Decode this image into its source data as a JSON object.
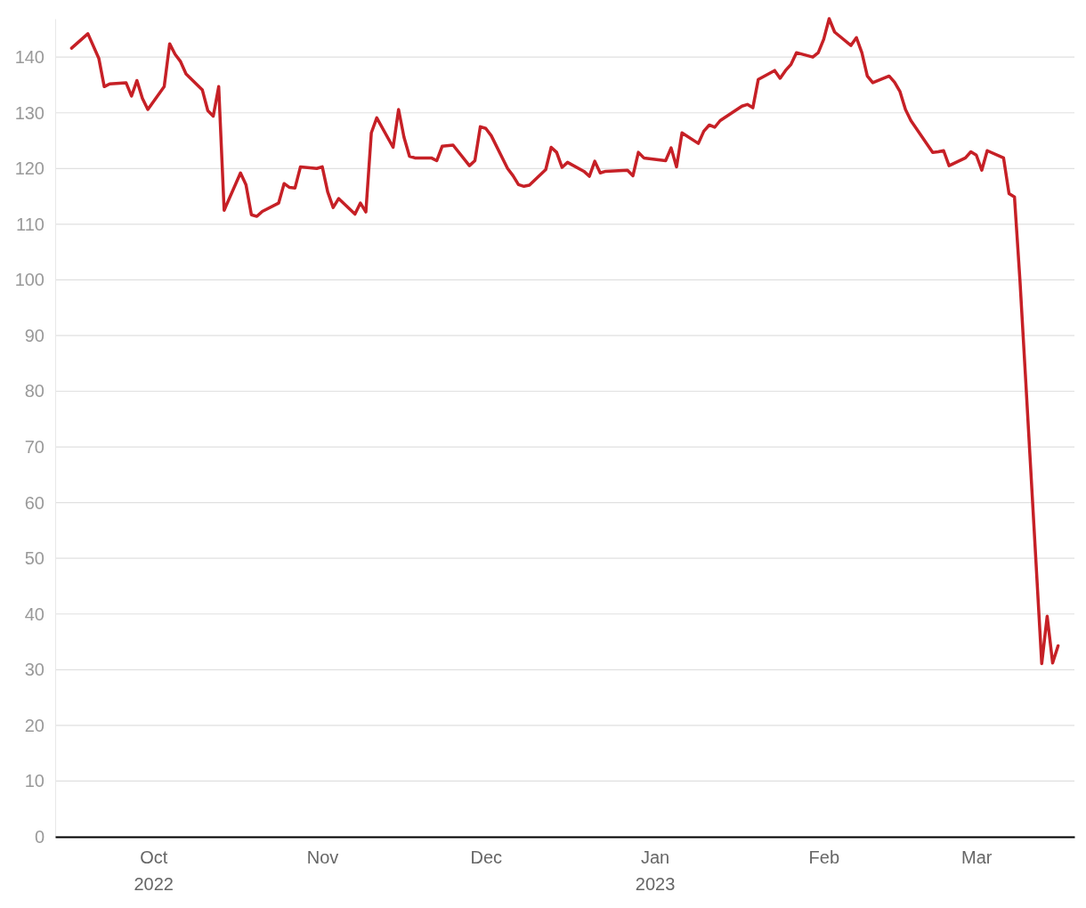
{
  "chart_data": {
    "type": "line",
    "x": [
      "2022-09-16",
      "2022-09-19",
      "2022-09-21",
      "2022-09-22",
      "2022-09-23",
      "2022-09-26",
      "2022-09-27",
      "2022-09-28",
      "2022-09-29",
      "2022-09-30",
      "2022-10-03",
      "2022-10-04",
      "2022-10-05",
      "2022-10-06",
      "2022-10-07",
      "2022-10-10",
      "2022-10-11",
      "2022-10-12",
      "2022-10-13",
      "2022-10-14",
      "2022-10-17",
      "2022-10-18",
      "2022-10-19",
      "2022-10-20",
      "2022-10-21",
      "2022-10-24",
      "2022-10-25",
      "2022-10-26",
      "2022-10-27",
      "2022-10-28",
      "2022-10-31",
      "2022-11-01",
      "2022-11-02",
      "2022-11-03",
      "2022-11-04",
      "2022-11-07",
      "2022-11-08",
      "2022-11-09",
      "2022-11-10",
      "2022-11-11",
      "2022-11-14",
      "2022-11-15",
      "2022-11-16",
      "2022-11-17",
      "2022-11-18",
      "2022-11-21",
      "2022-11-22",
      "2022-11-23",
      "2022-11-25",
      "2022-11-28",
      "2022-11-29",
      "2022-11-30",
      "2022-12-01",
      "2022-12-02",
      "2022-12-05",
      "2022-12-06",
      "2022-12-07",
      "2022-12-08",
      "2022-12-09",
      "2022-12-12",
      "2022-12-13",
      "2022-12-14",
      "2022-12-15",
      "2022-12-16",
      "2022-12-19",
      "2022-12-20",
      "2022-12-21",
      "2022-12-22",
      "2022-12-23",
      "2022-12-27",
      "2022-12-28",
      "2022-12-29",
      "2022-12-30",
      "2023-01-03",
      "2023-01-04",
      "2023-01-05",
      "2023-01-06",
      "2023-01-09",
      "2023-01-10",
      "2023-01-11",
      "2023-01-12",
      "2023-01-13",
      "2023-01-17",
      "2023-01-18",
      "2023-01-19",
      "2023-01-20",
      "2023-01-23",
      "2023-01-24",
      "2023-01-25",
      "2023-01-26",
      "2023-01-27",
      "2023-01-30",
      "2023-01-31",
      "2023-02-01",
      "2023-02-02",
      "2023-02-03",
      "2023-02-06",
      "2023-02-07",
      "2023-02-08",
      "2023-02-09",
      "2023-02-10",
      "2023-02-13",
      "2023-02-14",
      "2023-02-15",
      "2023-02-16",
      "2023-02-17",
      "2023-02-21",
      "2023-02-22",
      "2023-02-23",
      "2023-02-24",
      "2023-02-27",
      "2023-02-28",
      "2023-03-01",
      "2023-03-02",
      "2023-03-03",
      "2023-03-06",
      "2023-03-07",
      "2023-03-08",
      "2023-03-09",
      "2023-03-10",
      "2023-03-13",
      "2023-03-14",
      "2023-03-15",
      "2023-03-16"
    ],
    "series": [
      {
        "color": "#c62026",
        "values": [
          141.6,
          144.2,
          139.8,
          134.7,
          135.2,
          135.4,
          133,
          135.8,
          132.6,
          130.6,
          134.7,
          142.4,
          140.5,
          139.2,
          137,
          134.1,
          130.4,
          129.4,
          134.7,
          112.5,
          119.2,
          117.1,
          111.7,
          111.4,
          112.3,
          113.8,
          117.3,
          116.6,
          116.5,
          120.3,
          120,
          120.3,
          115.8,
          113,
          114.6,
          111.8,
          113.8,
          112.2,
          126.4,
          129.1,
          123.8,
          130.6,
          125.6,
          122.2,
          121.9,
          121.9,
          121.4,
          124,
          124.2,
          120.5,
          121.4,
          127.5,
          127.2,
          125.9,
          120,
          118.7,
          117.1,
          116.8,
          117,
          119.8,
          123.8,
          122.9,
          120.2,
          121.1,
          119.5,
          118.6,
          121.3,
          119.2,
          119.5,
          119.7,
          118.7,
          122.9,
          121.9,
          121.4,
          123.7,
          120.3,
          126.4,
          124.5,
          126.7,
          127.8,
          127.4,
          128.6,
          131.2,
          131.5,
          130.9,
          136,
          137.6,
          136.2,
          137.6,
          138.7,
          140.8,
          140,
          140.8,
          143.2,
          146.9,
          144.5,
          142.1,
          143.5,
          140.8,
          136.6,
          135.4,
          136.6,
          135.5,
          133.8,
          130.6,
          128.6,
          122.9,
          123,
          123.2,
          120.5,
          121.9,
          123,
          122.4,
          119.7,
          123.2,
          121.9,
          115.5,
          114.9,
          100,
          83,
          31.1,
          39.6,
          31.2,
          34.3
        ]
      }
    ],
    "xlim": [
      "2022-09-13",
      "2023-03-19"
    ],
    "xticks": [
      {
        "value": "2022-10-01",
        "label": "Oct 2022"
      },
      {
        "value": "2022-11-01",
        "label": "Nov"
      },
      {
        "value": "2022-12-01",
        "label": "Dec"
      },
      {
        "value": "2023-01-01",
        "label": "Jan 2023"
      },
      {
        "value": "2023-02-01",
        "label": "Feb"
      },
      {
        "value": "2023-03-01",
        "label": "Mar"
      }
    ],
    "ylim": [
      0,
      146.9
    ],
    "yticks": [
      0,
      10,
      20,
      30,
      40,
      50,
      60,
      70,
      80,
      90,
      100,
      110,
      120,
      130,
      140
    ],
    "grid": "y"
  }
}
